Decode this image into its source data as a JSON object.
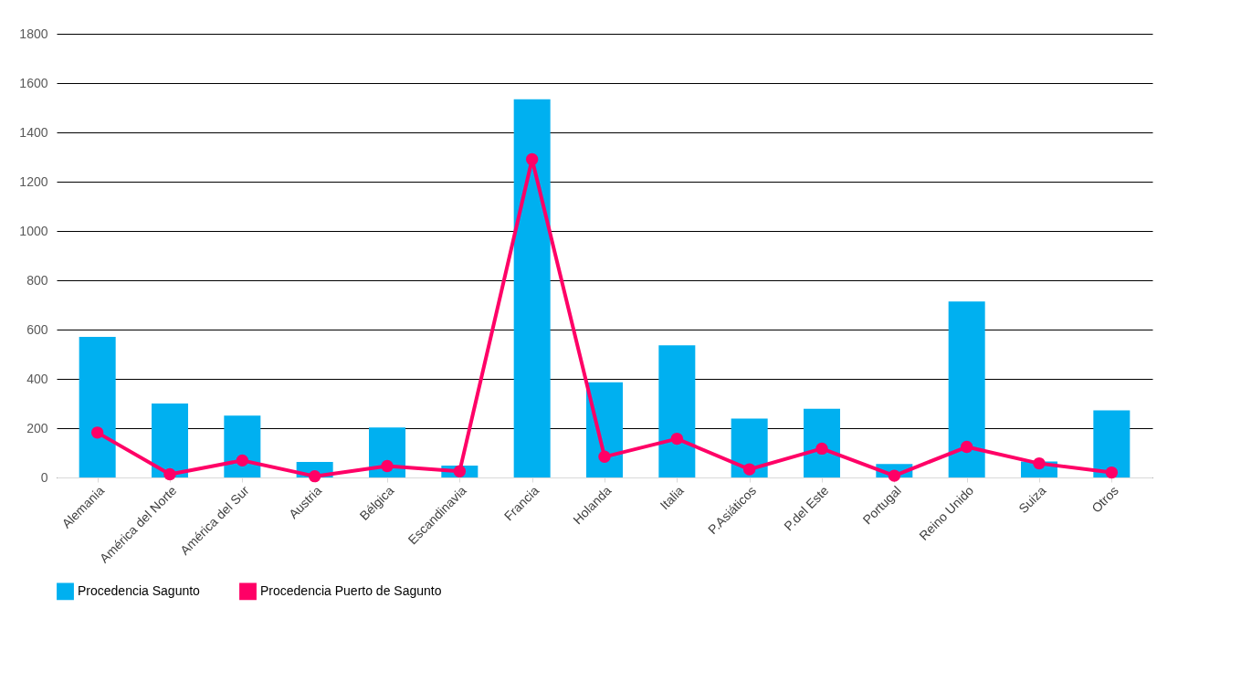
{
  "chart_data": {
    "type": "bar",
    "categories": [
      "Alemania",
      "América del Norte",
      "América del Sur",
      "Austria",
      "Bélgica",
      "Escandinavia",
      "Francia",
      "Holanda",
      "Italia",
      "P.Asiáticos",
      "P.del Este",
      "Portugal",
      "Reino Unido",
      "Suiza",
      "Otros"
    ],
    "series": [
      {
        "name": "Procedencia Sagunto",
        "color": "#00b0f0",
        "values": [
          570,
          300,
          251,
          63,
          203,
          48,
          1534,
          386,
          536,
          239,
          279,
          55,
          714,
          65,
          272
        ]
      },
      {
        "name": "Procedencia Puerto de Sagunto",
        "type": "line",
        "color": "#ff0066",
        "marker": "circle",
        "values": [
          182,
          13,
          69,
          5,
          46,
          25,
          1291,
          84,
          157,
          33,
          117,
          7,
          124,
          57,
          20
        ]
      }
    ],
    "ylim": [
      0,
      1800
    ],
    "yticks": [
      0,
      200,
      400,
      600,
      800,
      1000,
      1200,
      1400,
      1600,
      1800
    ],
    "grid": "y",
    "legend": "bottom"
  }
}
